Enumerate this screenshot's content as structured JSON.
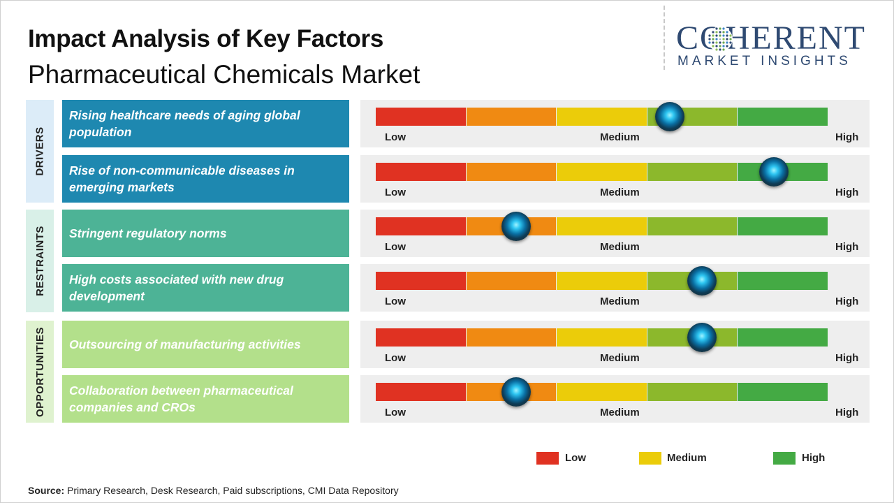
{
  "header": {
    "title": "Impact Analysis of Key Factors",
    "subtitle": "Pharmaceutical Chemicals Market"
  },
  "logo": {
    "name": "COHERENT",
    "tagline": "MARKET INSIGHTS",
    "color": "#2f4a72"
  },
  "groups": [
    {
      "label": "DRIVERS",
      "bg": "#dcecf8",
      "factor_color": "#1e88b0"
    },
    {
      "label": "RESTRAINTS",
      "bg": "#d9f0e8",
      "factor_color": "#4db396"
    },
    {
      "label": "OPPORTUNITIES",
      "bg": "#dff2cf",
      "factor_color": "#b3e08b"
    }
  ],
  "scale": {
    "segment_colors": [
      "#e03222",
      "#f08a12",
      "#ebcc0a",
      "#8cb82c",
      "#44aa44"
    ],
    "tick_labels": {
      "low": "Low",
      "medium": "Medium",
      "high": "High"
    }
  },
  "legend": [
    {
      "label": "Low",
      "color": "#e03222"
    },
    {
      "label": "Medium",
      "color": "#ebcc0a"
    },
    {
      "label": "High",
      "color": "#44aa44"
    }
  ],
  "source": {
    "label": "Source:",
    "text": "Primary Research, Desk Research, Paid subscriptions, CMI Data Repository"
  },
  "chart_data": {
    "type": "gauge",
    "title": "Impact Analysis of Key Factors",
    "subtitle": "Pharmaceutical Chemicals Market",
    "scale_min": 0,
    "scale_max": 100,
    "scale_labels": [
      "Low",
      "Medium",
      "High"
    ],
    "factors": [
      {
        "group": "DRIVERS",
        "text": "Rising healthcare  needs  of aging global population",
        "impact": 65
      },
      {
        "group": "DRIVERS",
        "text": "Rise  of non-communicable  diseases  in emerging  markets",
        "impact": 88
      },
      {
        "group": "RESTRAINTS",
        "text": "Stringent  regulatory  norms",
        "impact": 31
      },
      {
        "group": "RESTRAINTS",
        "text": "High costs  associated  with new drug development",
        "impact": 72
      },
      {
        "group": "OPPORTUNITIES",
        "text": "Outsourcing  of manufacturing  activities",
        "impact": 72
      },
      {
        "group": "OPPORTUNITIES",
        "text": "Collaboration  between  pharmaceutical companies and CROs",
        "impact": 31
      }
    ]
  }
}
